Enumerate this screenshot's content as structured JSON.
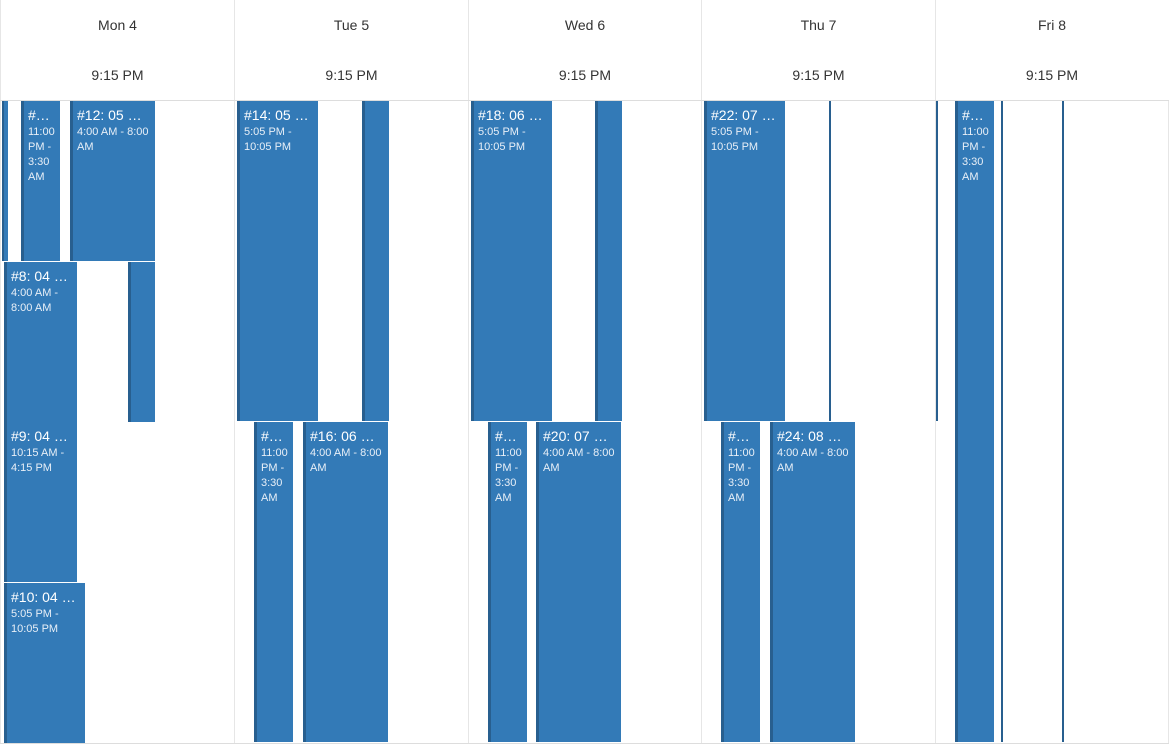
{
  "days": [
    {
      "label": "Mon 4",
      "time": "9:15 PM"
    },
    {
      "label": "Tue 5",
      "time": "9:15 PM"
    },
    {
      "label": "Wed 6",
      "time": "9:15 PM"
    },
    {
      "label": "Thu 7",
      "time": "9:15 PM"
    },
    {
      "label": "Fri 8",
      "time": "9:15 PM"
    }
  ],
  "events": {
    "mon_a": {
      "title": "#…",
      "time": "11:00 PM - 3:30 AM"
    },
    "mon_12": {
      "title": "#12: 05 …",
      "time": "4:00 AM - 8:00 AM"
    },
    "mon_8": {
      "title": "#8: 04 …",
      "time": "4:00 AM - 8:00 AM"
    },
    "mon_9": {
      "title": "#9: 04 …",
      "time": "10:15 AM - 4:15 PM"
    },
    "mon_10": {
      "title": "#10: 04 …",
      "time": "5:05 PM - 10:05 PM"
    },
    "tue_14": {
      "title": "#14: 05 …",
      "time": "5:05 PM - 10:05 PM"
    },
    "tue_a": {
      "title": "#…",
      "time": "11:00 PM - 3:30 AM"
    },
    "tue_16": {
      "title": "#16: 06 …",
      "time": "4:00 AM - 8:00 AM"
    },
    "wed_18": {
      "title": "#18: 06 …",
      "time": "5:05 PM - 10:05 PM"
    },
    "wed_a": {
      "title": "#…",
      "time": "11:00 PM - 3:30 AM"
    },
    "wed_20": {
      "title": "#20: 07 …",
      "time": "4:00 AM - 8:00 AM"
    },
    "thu_22": {
      "title": "#22: 07 …",
      "time": "5:05 PM - 10:05 PM"
    },
    "thu_a": {
      "title": "#…",
      "time": "11:00 PM - 3:30 AM"
    },
    "thu_24": {
      "title": "#24: 08 …",
      "time": "4:00 AM - 8:00 AM"
    },
    "fri_a": {
      "title": "#…",
      "time": "11:00 PM - 3:30 AM"
    }
  }
}
